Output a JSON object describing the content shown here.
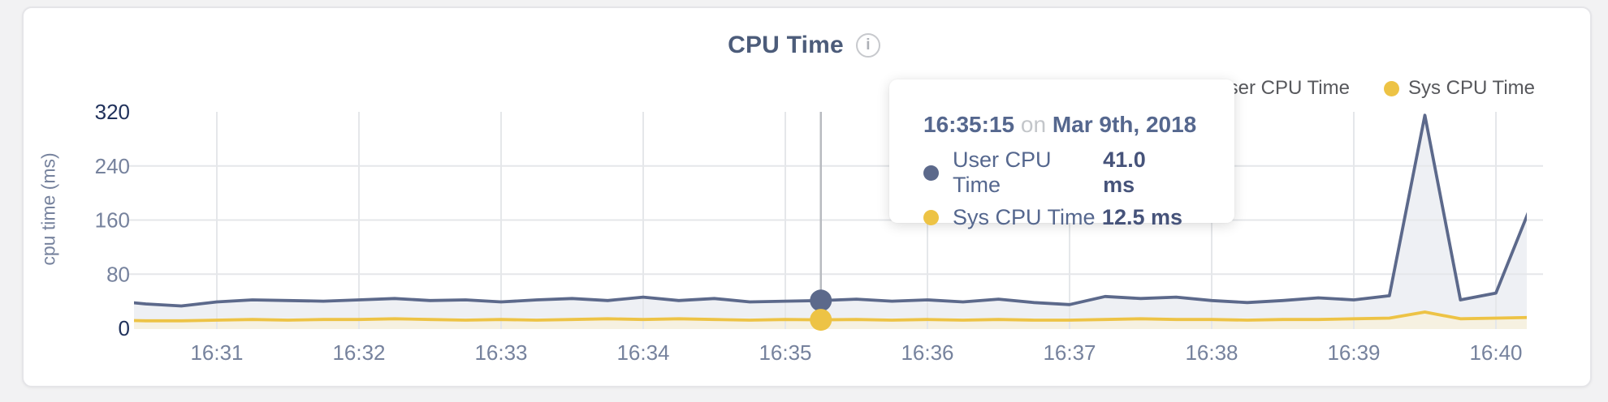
{
  "header": {
    "title": "CPU Time",
    "info_icon_glyph": "i"
  },
  "tooltip": {
    "time": "16:35:15",
    "on_word": "on",
    "date": "Mar 9th, 2018",
    "rows": [
      {
        "label": "User CPU Time",
        "value": "41.0 ms"
      },
      {
        "label": "Sys CPU Time",
        "value": "12.5 ms"
      }
    ]
  },
  "colors": {
    "user_line": "#5c698b",
    "user_fill": "#eef0f4",
    "sys_line": "#edc345",
    "sys_fill": "#f6f1e1",
    "grid": "#e5e7ea",
    "marker_line": "#b8bbc0",
    "axis_label_light": "#76829d",
    "axis_label_dark": "#20315b",
    "legend_text": "#57585c"
  },
  "chart_data": {
    "type": "area",
    "title": "CPU Time",
    "xlabel": "",
    "ylabel": "cpu time (ms)",
    "ylim": [
      0,
      320
    ],
    "y_ticks": [
      0,
      80,
      160,
      240,
      320
    ],
    "x_ticks": [
      "16:31",
      "16:32",
      "16:33",
      "16:34",
      "16:35",
      "16:36",
      "16:37",
      "16:38",
      "16:39",
      "16:40"
    ],
    "grid": true,
    "legend_position": "top-right",
    "highlight_x": "16:35:15",
    "x": [
      "16:30:15",
      "16:30:30",
      "16:30:45",
      "16:31:00",
      "16:31:15",
      "16:31:30",
      "16:31:45",
      "16:32:00",
      "16:32:15",
      "16:32:30",
      "16:32:45",
      "16:33:00",
      "16:33:15",
      "16:33:30",
      "16:33:45",
      "16:34:00",
      "16:34:15",
      "16:34:30",
      "16:34:45",
      "16:35:00",
      "16:35:15",
      "16:35:30",
      "16:35:45",
      "16:36:00",
      "16:36:15",
      "16:36:30",
      "16:36:45",
      "16:37:00",
      "16:37:15",
      "16:37:30",
      "16:37:45",
      "16:38:00",
      "16:38:15",
      "16:38:30",
      "16:38:45",
      "16:39:00",
      "16:39:15",
      "16:39:30",
      "16:39:45",
      "16:40:00",
      "16:40:15"
    ],
    "series": [
      {
        "name": "User CPU Time",
        "color": "#5c698b",
        "fill": "#eef0f4",
        "values": [
          41,
          36,
          33,
          39,
          42,
          41,
          40,
          42,
          44,
          41,
          42,
          39,
          42,
          44,
          41,
          46,
          41,
          44,
          39,
          40,
          41,
          43,
          40,
          42,
          39,
          43,
          38,
          35,
          47,
          44,
          46,
          41,
          38,
          41,
          45,
          42,
          48,
          315,
          42,
          52,
          183
        ]
      },
      {
        "name": "Sys CPU Time",
        "color": "#edc345",
        "fill": "#f6f1e1",
        "values": [
          12,
          11,
          11,
          12,
          13,
          12,
          13,
          13,
          14,
          13,
          12,
          13,
          12,
          13,
          14,
          13,
          14,
          13,
          12,
          13,
          12.5,
          13,
          12,
          13,
          12,
          13,
          12,
          12,
          13,
          14,
          13,
          13,
          12,
          13,
          13,
          14,
          15,
          24,
          14,
          15,
          16
        ]
      }
    ]
  }
}
